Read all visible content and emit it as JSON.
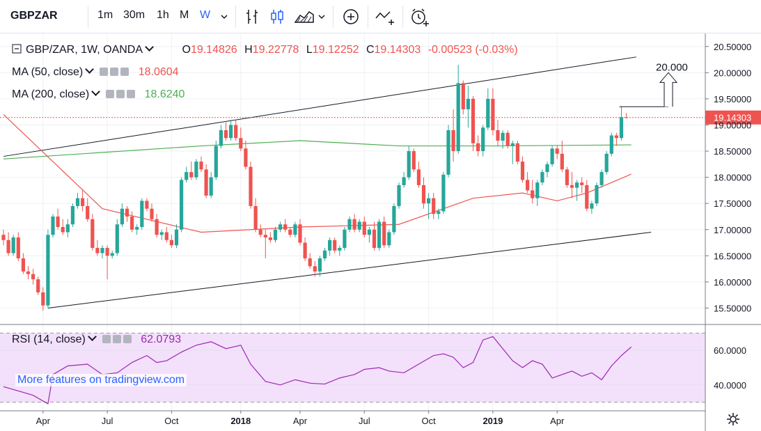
{
  "toolbar": {
    "symbol": "GBPZAR",
    "intervals": [
      "1m",
      "30m",
      "1h",
      "M",
      "W"
    ],
    "active_interval": "W"
  },
  "legend": {
    "symbol": "GBP/ZAR, 1W, OANDA",
    "open_label": "O",
    "open": "19.14826",
    "high_label": "H",
    "high": "19.22778",
    "low_label": "L",
    "low": "19.12252",
    "close_label": "C",
    "close": "19.14303",
    "change": "-0.00523 (-0.03%)",
    "ma50_label": "MA (50, close)",
    "ma50_value": "18.0604",
    "ma200_label": "MA (200, close)",
    "ma200_value": "18.6240",
    "rsi_label": "RSI (14, close)",
    "rsi_value": "62.0793"
  },
  "watermark": "More features on tradingview.com",
  "colors": {
    "up": "#26a69a",
    "down": "#ef5350",
    "ma50": "#ef5350",
    "ma200": "#4caf50",
    "rsi": "#9c27b0",
    "rsi_band": "#f3e0fb",
    "accent": "#2962ff"
  },
  "chart_data": [
    {
      "type": "candlestick",
      "title": "GBP/ZAR, 1W, OANDA",
      "x_ticks": [
        "Apr",
        "Jul",
        "Oct",
        "2018",
        "Apr",
        "Jul",
        "Oct",
        "2019",
        "Apr"
      ],
      "y_ticks": [
        "20.50000",
        "20.00000",
        "19.50000",
        "19.00000",
        "18.50000",
        "18.00000",
        "17.50000",
        "17.00000",
        "16.50000",
        "16.00000",
        "15.50000"
      ],
      "ylim": [
        15.2,
        20.75
      ],
      "last_price": "19.14303",
      "annotation": "20.000",
      "candles": [
        [
          16.9,
          17.0,
          16.7,
          16.8
        ],
        [
          16.8,
          16.95,
          16.5,
          16.55
        ],
        [
          16.55,
          16.9,
          16.5,
          16.85
        ],
        [
          16.85,
          16.95,
          16.4,
          16.45
        ],
        [
          16.45,
          16.55,
          16.15,
          16.2
        ],
        [
          16.2,
          16.3,
          16.05,
          16.15
        ],
        [
          16.15,
          16.25,
          15.95,
          16.05
        ],
        [
          16.05,
          16.1,
          15.75,
          15.8
        ],
        [
          15.8,
          15.9,
          15.45,
          15.55
        ],
        [
          15.55,
          17.0,
          15.5,
          16.9
        ],
        [
          16.9,
          17.3,
          16.85,
          17.25
        ],
        [
          17.25,
          17.4,
          17.0,
          17.05
        ],
        [
          17.05,
          17.2,
          16.9,
          16.95
        ],
        [
          16.95,
          17.2,
          16.85,
          17.1
        ],
        [
          17.1,
          17.5,
          17.05,
          17.45
        ],
        [
          17.45,
          17.7,
          17.4,
          17.6
        ],
        [
          17.6,
          17.75,
          17.35,
          17.45
        ],
        [
          17.45,
          17.6,
          17.15,
          17.2
        ],
        [
          17.2,
          17.3,
          16.6,
          16.65
        ],
        [
          16.65,
          16.8,
          16.5,
          16.55
        ],
        [
          16.55,
          16.7,
          16.45,
          16.65
        ],
        [
          16.65,
          16.7,
          16.05,
          16.5
        ],
        [
          16.5,
          16.6,
          16.45,
          16.55
        ],
        [
          16.55,
          17.2,
          16.5,
          17.1
        ],
        [
          17.1,
          17.5,
          17.05,
          17.4
        ],
        [
          17.4,
          17.45,
          17.15,
          17.25
        ],
        [
          17.25,
          17.35,
          16.95,
          17.0
        ],
        [
          17.0,
          17.1,
          16.9,
          17.05
        ],
        [
          17.05,
          17.6,
          17.0,
          17.55
        ],
        [
          17.55,
          17.6,
          17.35,
          17.4
        ],
        [
          17.4,
          17.5,
          17.15,
          17.2
        ],
        [
          17.2,
          17.3,
          16.85,
          16.9
        ],
        [
          16.9,
          17.0,
          16.8,
          16.95
        ],
        [
          16.95,
          17.05,
          16.75,
          16.8
        ],
        [
          16.8,
          16.9,
          16.65,
          16.7
        ],
        [
          16.7,
          17.1,
          16.65,
          17.0
        ],
        [
          17.0,
          18.0,
          16.95,
          17.95
        ],
        [
          17.95,
          18.2,
          17.9,
          18.1
        ],
        [
          18.1,
          18.3,
          17.95,
          18.0
        ],
        [
          18.0,
          18.35,
          17.95,
          18.3
        ],
        [
          18.3,
          18.4,
          18.1,
          18.15
        ],
        [
          18.15,
          18.25,
          17.6,
          17.65
        ],
        [
          17.65,
          18.1,
          17.6,
          18.0
        ],
        [
          18.0,
          18.7,
          17.95,
          18.6
        ],
        [
          18.6,
          19.0,
          18.55,
          18.9
        ],
        [
          18.9,
          19.05,
          18.7,
          18.75
        ],
        [
          18.75,
          19.1,
          18.7,
          19.0
        ],
        [
          19.0,
          19.1,
          18.7,
          18.75
        ],
        [
          18.75,
          18.95,
          18.5,
          18.55
        ],
        [
          18.55,
          18.7,
          18.15,
          18.2
        ],
        [
          18.2,
          18.3,
          17.4,
          17.45
        ],
        [
          17.45,
          17.6,
          16.95,
          17.0
        ],
        [
          17.0,
          17.1,
          16.85,
          16.9
        ],
        [
          16.9,
          17.0,
          16.45,
          16.85
        ],
        [
          16.85,
          16.95,
          16.75,
          16.8
        ],
        [
          16.8,
          17.05,
          16.75,
          17.0
        ],
        [
          17.0,
          17.15,
          16.95,
          17.1
        ],
        [
          17.1,
          17.2,
          16.95,
          17.0
        ],
        [
          17.0,
          17.05,
          16.85,
          16.9
        ],
        [
          16.9,
          17.15,
          16.85,
          17.1
        ],
        [
          17.1,
          17.2,
          16.7,
          16.75
        ],
        [
          16.75,
          16.85,
          16.4,
          16.45
        ],
        [
          16.45,
          16.55,
          16.25,
          16.3
        ],
        [
          16.3,
          16.4,
          16.1,
          16.2
        ],
        [
          16.2,
          16.5,
          16.1,
          16.45
        ],
        [
          16.45,
          16.65,
          16.4,
          16.6
        ],
        [
          16.6,
          16.85,
          16.5,
          16.8
        ],
        [
          16.8,
          16.85,
          16.55,
          16.6
        ],
        [
          16.6,
          16.7,
          16.5,
          16.65
        ],
        [
          16.65,
          17.05,
          16.6,
          17.0
        ],
        [
          17.0,
          17.25,
          16.95,
          17.2
        ],
        [
          17.2,
          17.3,
          16.95,
          17.0
        ],
        [
          17.0,
          17.2,
          16.95,
          17.15
        ],
        [
          17.15,
          17.25,
          16.85,
          16.9
        ],
        [
          16.9,
          17.05,
          16.75,
          17.0
        ],
        [
          17.0,
          17.15,
          16.6,
          16.65
        ],
        [
          16.65,
          17.2,
          16.6,
          17.15
        ],
        [
          17.15,
          17.25,
          16.65,
          16.7
        ],
        [
          16.7,
          17.0,
          16.65,
          16.95
        ],
        [
          16.95,
          17.5,
          16.9,
          17.45
        ],
        [
          17.45,
          17.9,
          17.4,
          17.85
        ],
        [
          17.85,
          18.1,
          17.8,
          18.0
        ],
        [
          18.0,
          18.6,
          17.95,
          18.5
        ],
        [
          18.5,
          18.55,
          18.1,
          18.15
        ],
        [
          18.15,
          18.3,
          17.8,
          17.85
        ],
        [
          17.85,
          18.0,
          17.4,
          17.5
        ],
        [
          17.5,
          17.7,
          17.2,
          17.6
        ],
        [
          17.6,
          17.7,
          17.2,
          17.3
        ],
        [
          17.3,
          17.4,
          17.2,
          17.35
        ],
        [
          17.35,
          18.1,
          17.3,
          18.05
        ],
        [
          18.05,
          19.0,
          18.0,
          18.9
        ],
        [
          18.9,
          19.3,
          18.3,
          18.5
        ],
        [
          18.5,
          20.15,
          18.45,
          19.8
        ],
        [
          19.8,
          19.85,
          19.2,
          19.3
        ],
        [
          19.3,
          19.75,
          18.95,
          19.5
        ],
        [
          19.5,
          19.55,
          18.5,
          18.65
        ],
        [
          18.65,
          18.8,
          18.4,
          18.5
        ],
        [
          18.5,
          19.0,
          18.4,
          18.95
        ],
        [
          18.95,
          19.7,
          18.9,
          19.5
        ],
        [
          19.5,
          19.7,
          18.8,
          18.9
        ],
        [
          18.9,
          19.1,
          18.6,
          18.7
        ],
        [
          18.7,
          18.9,
          18.55,
          18.85
        ],
        [
          18.85,
          18.9,
          18.55,
          18.6
        ],
        [
          18.6,
          18.7,
          18.25,
          18.65
        ],
        [
          18.65,
          18.7,
          18.25,
          18.3
        ],
        [
          18.3,
          18.4,
          17.9,
          17.95
        ],
        [
          17.95,
          18.1,
          17.7,
          17.75
        ],
        [
          17.75,
          17.95,
          17.5,
          17.6
        ],
        [
          17.6,
          17.95,
          17.45,
          17.9
        ],
        [
          17.9,
          18.15,
          17.85,
          18.1
        ],
        [
          18.1,
          18.3,
          18.0,
          18.25
        ],
        [
          18.25,
          18.6,
          18.2,
          18.55
        ],
        [
          18.55,
          18.6,
          18.35,
          18.45
        ],
        [
          18.45,
          18.7,
          18.1,
          18.15
        ],
        [
          18.15,
          18.2,
          17.8,
          17.85
        ],
        [
          17.85,
          18.1,
          17.6,
          17.8
        ],
        [
          17.8,
          17.95,
          17.55,
          17.9
        ],
        [
          17.9,
          18.0,
          17.7,
          17.85
        ],
        [
          17.85,
          17.95,
          17.35,
          17.4
        ],
        [
          17.4,
          17.55,
          17.3,
          17.5
        ],
        [
          17.5,
          17.9,
          17.45,
          17.85
        ],
        [
          17.85,
          18.15,
          17.8,
          18.1
        ],
        [
          18.1,
          18.5,
          18.05,
          18.45
        ],
        [
          18.45,
          18.85,
          18.4,
          18.8
        ],
        [
          18.8,
          18.85,
          18.6,
          18.75
        ],
        [
          18.75,
          19.35,
          18.7,
          19.15
        ],
        [
          19.14826,
          19.22778,
          19.12252,
          19.14303
        ]
      ],
      "ma50": [
        [
          0,
          19.2
        ],
        [
          20,
          17.4
        ],
        [
          40,
          16.95
        ],
        [
          60,
          17.05
        ],
        [
          80,
          17.1
        ],
        [
          95,
          17.6
        ],
        [
          105,
          17.7
        ],
        [
          112,
          17.55
        ],
        [
          118,
          17.7
        ],
        [
          127,
          18.06
        ]
      ],
      "ma200": [
        [
          0,
          18.35
        ],
        [
          40,
          18.6
        ],
        [
          60,
          18.7
        ],
        [
          80,
          18.6
        ],
        [
          100,
          18.6
        ],
        [
          127,
          18.62
        ]
      ],
      "channel_upper": [
        [
          0,
          18.4
        ],
        [
          128,
          20.3
        ]
      ],
      "channel_lower": [
        [
          9,
          15.5
        ],
        [
          131,
          16.95
        ]
      ],
      "projection_from": 19.35
    },
    {
      "type": "line",
      "title": "RSI (14, close)",
      "y_ticks": [
        "60.0000",
        "40.0000"
      ],
      "ylim": [
        25,
        75
      ],
      "band": [
        30,
        70
      ],
      "value": "62.0793",
      "series": [
        {
          "values": [
            [
              0,
              39
            ],
            [
              3,
              36.5
            ],
            [
              6,
              34
            ],
            [
              9,
              29
            ],
            [
              10,
              46
            ],
            [
              13,
              51
            ],
            [
              17,
              52
            ],
            [
              20,
              46
            ],
            [
              23,
              47
            ],
            [
              26,
              53
            ],
            [
              29,
              57
            ],
            [
              31,
              53
            ],
            [
              33,
              54
            ],
            [
              36,
              59
            ],
            [
              39,
              63
            ],
            [
              42,
              65
            ],
            [
              45,
              61
            ],
            [
              48,
              63
            ],
            [
              50,
              52
            ],
            [
              53,
              42
            ],
            [
              56,
              40
            ],
            [
              59,
              43
            ],
            [
              62,
              41
            ],
            [
              65,
              40.5
            ],
            [
              68,
              44
            ],
            [
              71,
              46
            ],
            [
              73,
              49
            ],
            [
              76,
              50
            ],
            [
              78,
              48
            ],
            [
              81,
              47
            ],
            [
              84,
              52
            ],
            [
              87,
              57
            ],
            [
              89,
              58
            ],
            [
              91,
              56
            ],
            [
              93,
              50
            ],
            [
              95,
              53
            ],
            [
              97,
              66
            ],
            [
              99,
              68
            ],
            [
              101,
              61
            ],
            [
              103,
              54
            ],
            [
              105,
              50
            ],
            [
              107,
              54
            ],
            [
              109,
              52
            ],
            [
              111,
              44
            ],
            [
              113,
              46
            ],
            [
              115,
              48
            ],
            [
              117,
              45
            ],
            [
              119,
              47
            ],
            [
              121,
              43
            ],
            [
              123,
              51
            ],
            [
              125,
              57
            ],
            [
              127,
              62
            ]
          ]
        }
      ]
    }
  ]
}
